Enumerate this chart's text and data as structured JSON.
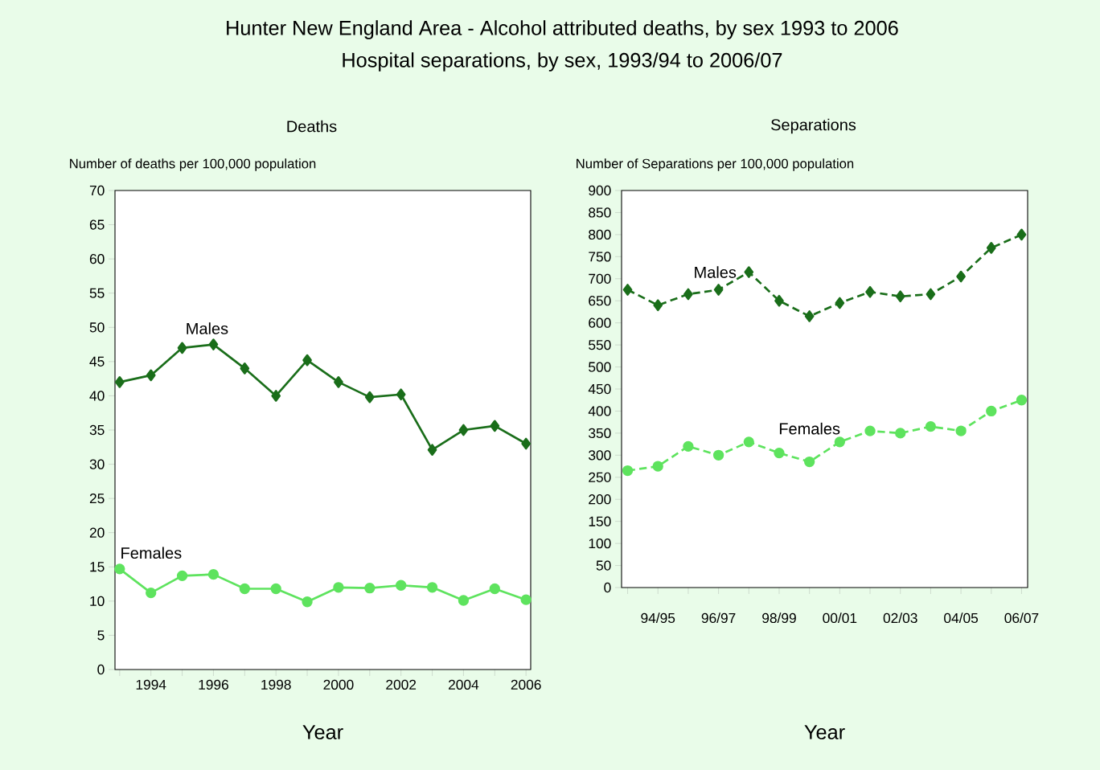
{
  "chart_data": [
    {
      "type": "other",
      "title": "Hunter New England Area - Alcohol attributed deaths, by sex 1993 to 2006",
      "subtitle": "Hospital separations, by sex, 1993/94 to 2006/07"
    },
    {
      "type": "line",
      "title": "Deaths",
      "ylabel": "Number of deaths  per 100,000 population",
      "xlabel": "Year",
      "line_style": "solid",
      "x": [
        1993,
        1994,
        1995,
        1996,
        1997,
        1998,
        1999,
        2000,
        2001,
        2002,
        2003,
        2004,
        2005,
        2006
      ],
      "xlim": [
        1992.85,
        2006.15
      ],
      "xticks": [
        {
          "value": 1993,
          "label": null
        },
        1994,
        {
          "value": 1995,
          "label": null
        },
        1996,
        {
          "value": 1997,
          "label": null
        },
        1998,
        {
          "value": 1999,
          "label": null
        },
        2000,
        {
          "value": 2001,
          "label": null
        },
        2002,
        {
          "value": 2003,
          "label": null
        },
        2004,
        {
          "value": 2005,
          "label": null
        },
        2006
      ],
      "ylim": [
        0,
        70
      ],
      "yticks": [
        0,
        5,
        10,
        15,
        20,
        25,
        30,
        35,
        40,
        45,
        50,
        55,
        60,
        65,
        70
      ],
      "series": [
        {
          "name": "Males",
          "color": "#1a6e1a",
          "marker": "diamond",
          "values": [
            42,
            43,
            47,
            47.5,
            44,
            40,
            45.2,
            42,
            39.8,
            40.2,
            32.1,
            35,
            35.6,
            33
          ]
        },
        {
          "name": "Females",
          "color": "#5ee35e",
          "marker": "circle",
          "values": [
            14.7,
            11.2,
            13.7,
            13.9,
            11.8,
            11.8,
            9.9,
            12,
            11.9,
            12.3,
            12,
            10.1,
            11.8,
            10.2
          ]
        }
      ]
    },
    {
      "type": "line",
      "title": "Separations",
      "ylabel": "Number  of Separations   per 100,000 population",
      "xlabel": "Year",
      "line_style": "dashed",
      "categories": [
        null,
        "94/95",
        null,
        "96/97",
        null,
        "98/99",
        null,
        "00/01",
        null,
        "02/03",
        null,
        "04/05",
        null,
        "06/07"
      ],
      "ylim": [
        0,
        900
      ],
      "yticks": [
        0,
        50,
        100,
        150,
        200,
        250,
        300,
        350,
        400,
        450,
        500,
        550,
        600,
        650,
        700,
        750,
        800,
        850,
        900
      ],
      "series": [
        {
          "name": "Males",
          "color": "#1a6e1a",
          "marker": "diamond",
          "values": [
            675,
            640,
            665,
            675,
            715,
            650,
            615,
            645,
            670,
            660,
            665,
            705,
            770,
            800
          ]
        },
        {
          "name": "Females",
          "color": "#5ee35e",
          "marker": "circle",
          "values": [
            265,
            275,
            320,
            300,
            330,
            305,
            285,
            330,
            355,
            350,
            365,
            355,
            400,
            425
          ]
        }
      ]
    }
  ]
}
